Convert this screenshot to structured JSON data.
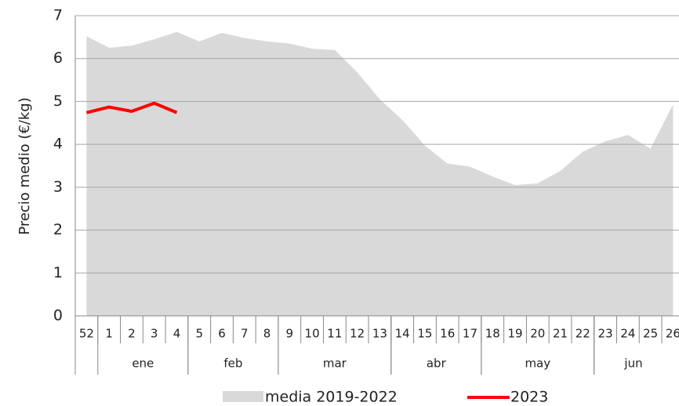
{
  "chart_data": {
    "type": "area_line",
    "ylabel": "Precio medio (€/kg)",
    "categories": [
      "52",
      "1",
      "2",
      "3",
      "4",
      "5",
      "6",
      "7",
      "8",
      "9",
      "10",
      "11",
      "12",
      "13",
      "14",
      "15",
      "16",
      "17",
      "18",
      "19",
      "20",
      "21",
      "22",
      "23",
      "24",
      "25",
      "26"
    ],
    "month_groups": [
      {
        "label": "ene",
        "weeks": [
          "1",
          "2",
          "3",
          "4"
        ]
      },
      {
        "label": "feb",
        "weeks": [
          "5",
          "6",
          "7",
          "8"
        ]
      },
      {
        "label": "mar",
        "weeks": [
          "9",
          "10",
          "11",
          "12",
          "13"
        ]
      },
      {
        "label": "abr",
        "weeks": [
          "14",
          "15",
          "16",
          "17"
        ]
      },
      {
        "label": "may",
        "weeks": [
          "18",
          "19",
          "20",
          "21",
          "22"
        ]
      },
      {
        "label": "jun",
        "weeks": [
          "23",
          "24",
          "25",
          "26"
        ]
      }
    ],
    "series": [
      {
        "name": "media 2019-2022",
        "color": "#d9d9d9",
        "kind": "area",
        "values": [
          6.52,
          6.25,
          6.3,
          6.45,
          6.62,
          6.4,
          6.6,
          6.48,
          6.4,
          6.35,
          6.23,
          6.2,
          5.68,
          5.05,
          4.57,
          3.97,
          3.55,
          3.48,
          3.25,
          3.05,
          3.09,
          3.38,
          3.83,
          4.07,
          4.22,
          3.9,
          4.93
        ]
      },
      {
        "name": "2023",
        "color": "#ff0000",
        "kind": "line",
        "values": [
          4.74,
          4.87,
          4.77,
          4.96,
          4.74,
          null,
          null,
          null,
          null,
          null,
          null,
          null,
          null,
          null,
          null,
          null,
          null,
          null,
          null,
          null,
          null,
          null,
          null,
          null,
          null,
          null,
          null
        ]
      }
    ],
    "ylim": [
      0,
      7
    ],
    "yticks": [
      0,
      1,
      2,
      3,
      4,
      5,
      6,
      7
    ],
    "grid": true
  }
}
